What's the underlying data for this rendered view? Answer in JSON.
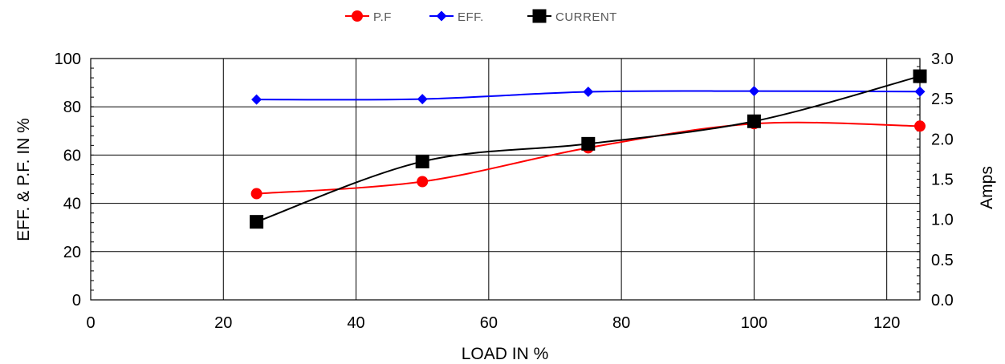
{
  "chart_data": {
    "type": "line",
    "xlabel": "LOAD IN %",
    "ylabel": "EFF. & P.F. IN %",
    "y2label": "Amps",
    "xlim": [
      0,
      125
    ],
    "ylim": [
      0,
      100
    ],
    "y2lim": [
      0,
      3
    ],
    "xticks": [
      0,
      20,
      40,
      60,
      80,
      100,
      120
    ],
    "yticks": [
      0,
      20,
      40,
      60,
      80,
      100
    ],
    "y2ticks": [
      "0.0",
      "0.5",
      "1.0",
      "1.5",
      "2.0",
      "2.5",
      "3.0"
    ],
    "grid": true,
    "legend_position": "top",
    "series": [
      {
        "name": "P.F",
        "axis": "left",
        "color": "#ff0000",
        "marker": "circle",
        "x": [
          25,
          50,
          75,
          100,
          125
        ],
        "values": [
          44,
          49,
          63,
          73,
          72
        ]
      },
      {
        "name": "EFF.",
        "axis": "left",
        "color": "#0000ff",
        "marker": "diamond",
        "x": [
          25,
          50,
          75,
          100,
          125
        ],
        "values": [
          83,
          83.2,
          86.2,
          86.5,
          86.3
        ]
      },
      {
        "name": "CURRENT",
        "axis": "right",
        "color": "#000000",
        "marker": "square",
        "x": [
          25,
          50,
          75,
          100,
          125
        ],
        "values": [
          0.97,
          1.72,
          1.94,
          2.22,
          2.78
        ]
      }
    ]
  }
}
